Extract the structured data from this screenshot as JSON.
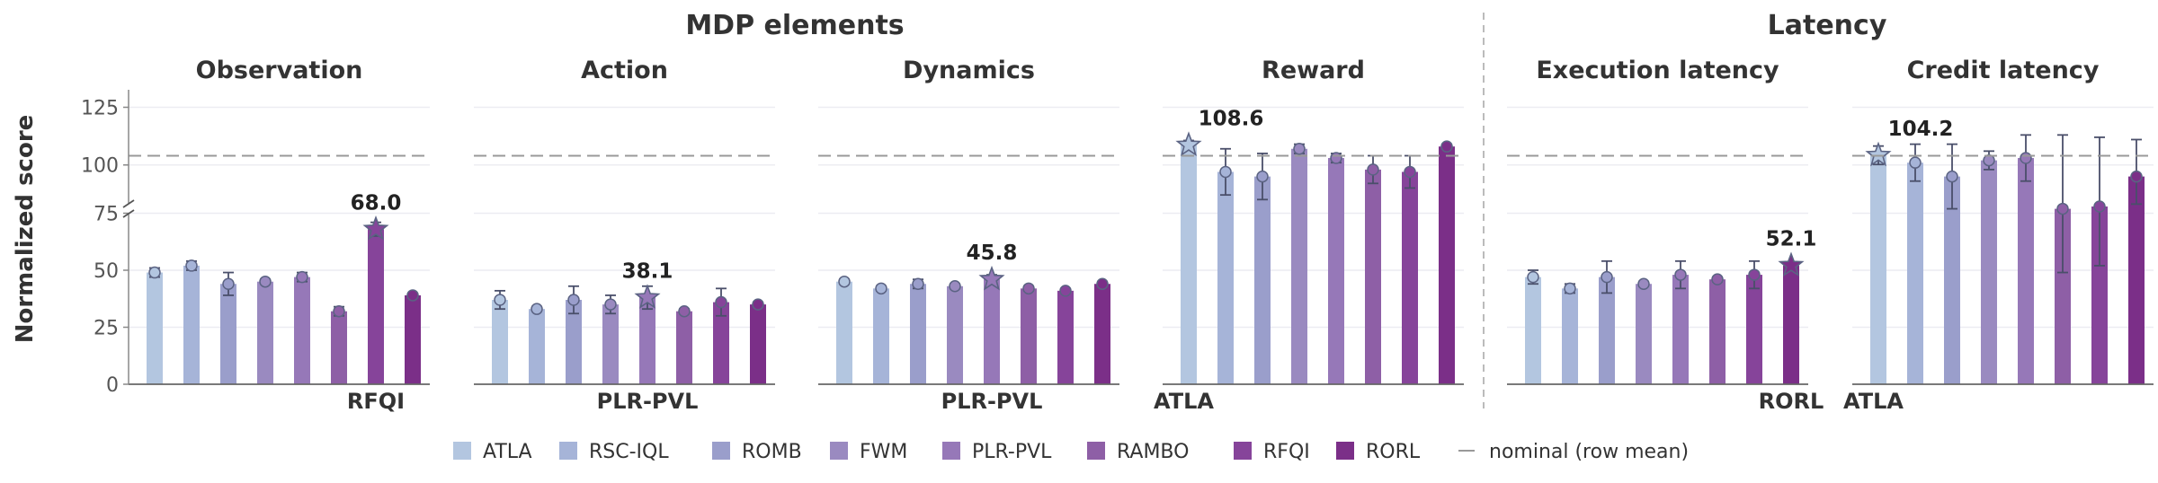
{
  "chart_data": {
    "type": "bar",
    "ylabel": "Normalized score",
    "legend_position": "bottom-center",
    "nominal_label": "nominal (row mean)",
    "nominal_value": 104,
    "group_titles": [
      "MDP elements",
      "Latency"
    ],
    "y_ticks": [
      0,
      25,
      50,
      75,
      100,
      125
    ],
    "methods": [
      "ATLA",
      "RSC-IQL",
      "ROMB",
      "FWM",
      "PLR-PVL",
      "RAMBO",
      "RFQI",
      "RORL"
    ],
    "colors": [
      "#b3c6e0",
      "#a6b4d8",
      "#9a9ecb",
      "#9a8ac0",
      "#9678b8",
      "#8e5fa6",
      "#86449a",
      "#7b2f88"
    ],
    "panels": [
      {
        "title": "Observation",
        "values": [
          49,
          52,
          44,
          45,
          47,
          32,
          68,
          39
        ],
        "errors": [
          2,
          2,
          5,
          1,
          2,
          2,
          3,
          1
        ],
        "best_index": 6,
        "best_value": "68.0",
        "best_method": "RFQI"
      },
      {
        "title": "Action",
        "values": [
          37,
          33,
          37,
          35,
          38,
          32,
          36,
          35
        ],
        "errors": [
          4,
          1,
          6,
          4,
          5,
          1,
          6,
          1
        ],
        "best_index": 4,
        "best_value": "38.1",
        "best_method": "PLR-PVL"
      },
      {
        "title": "Dynamics",
        "values": [
          45,
          42,
          44,
          43,
          46,
          42,
          41,
          44
        ],
        "errors": [
          1,
          1,
          2,
          1,
          2,
          1,
          1,
          1
        ],
        "best_index": 4,
        "best_value": "45.8",
        "best_method": "PLR-PVL"
      },
      {
        "title": "Reward",
        "values": [
          108.6,
          97,
          95,
          107,
          103,
          98,
          97,
          108
        ],
        "errors": [
          2,
          10,
          10,
          2,
          2,
          6,
          7,
          1
        ],
        "best_index": 0,
        "best_value": "108.6",
        "best_method": "ATLA"
      },
      {
        "title": "Execution latency",
        "values": [
          47,
          42,
          47,
          44,
          48,
          46,
          48,
          52.1
        ],
        "errors": [
          3,
          2,
          7,
          1,
          6,
          1,
          6,
          1
        ],
        "best_index": 7,
        "best_value": "52.1",
        "best_method": "RORL"
      },
      {
        "title": "Credit latency",
        "values": [
          104.2,
          101,
          95,
          102,
          103,
          81,
          82,
          95
        ],
        "errors": [
          4,
          8,
          14,
          4,
          10,
          32,
          30,
          16
        ],
        "best_index": 0,
        "best_value": "104.2",
        "best_method": "ATLA"
      }
    ]
  }
}
